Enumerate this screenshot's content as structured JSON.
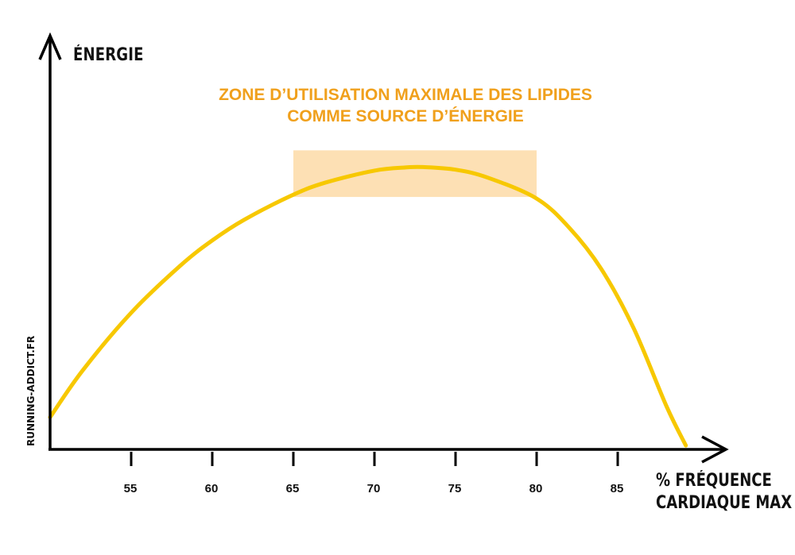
{
  "chart_data": {
    "type": "line",
    "title": "",
    "xlabel_lines": [
      "% FRÉQUENCE",
      "CARDIAQUE MAX"
    ],
    "ylabel": "ÉNERGIE",
    "x_ticks": [
      55,
      60,
      65,
      70,
      75,
      80,
      85
    ],
    "xlim": [
      50,
      92
    ],
    "ylim": [
      0,
      10
    ],
    "grid": false,
    "series": [
      {
        "color": "#f7c800",
        "x": [
          50,
          52,
          55,
          58,
          60,
          62,
          65,
          67,
          70,
          72,
          73,
          75,
          77,
          80,
          82,
          84,
          86,
          88,
          89.2
        ],
        "y": [
          1.0,
          2.45,
          4.25,
          5.7,
          6.5,
          7.15,
          7.92,
          8.3,
          8.67,
          8.77,
          8.78,
          8.7,
          8.45,
          7.8,
          6.9,
          5.6,
          3.75,
          1.35,
          0.12
        ]
      }
    ],
    "highlight_zone": {
      "x_range": [
        65,
        80
      ],
      "y_range": [
        7.85,
        9.3
      ],
      "color": "#fde0b4",
      "label_lines": [
        "ZONE D’UTILISATION MAXIMALE DES LIPIDES",
        "COMME SOURCE D’ÉNERGIE"
      ],
      "label_color": "#f0a01c"
    }
  },
  "watermark": "RUNNING-ADDICT.FR"
}
